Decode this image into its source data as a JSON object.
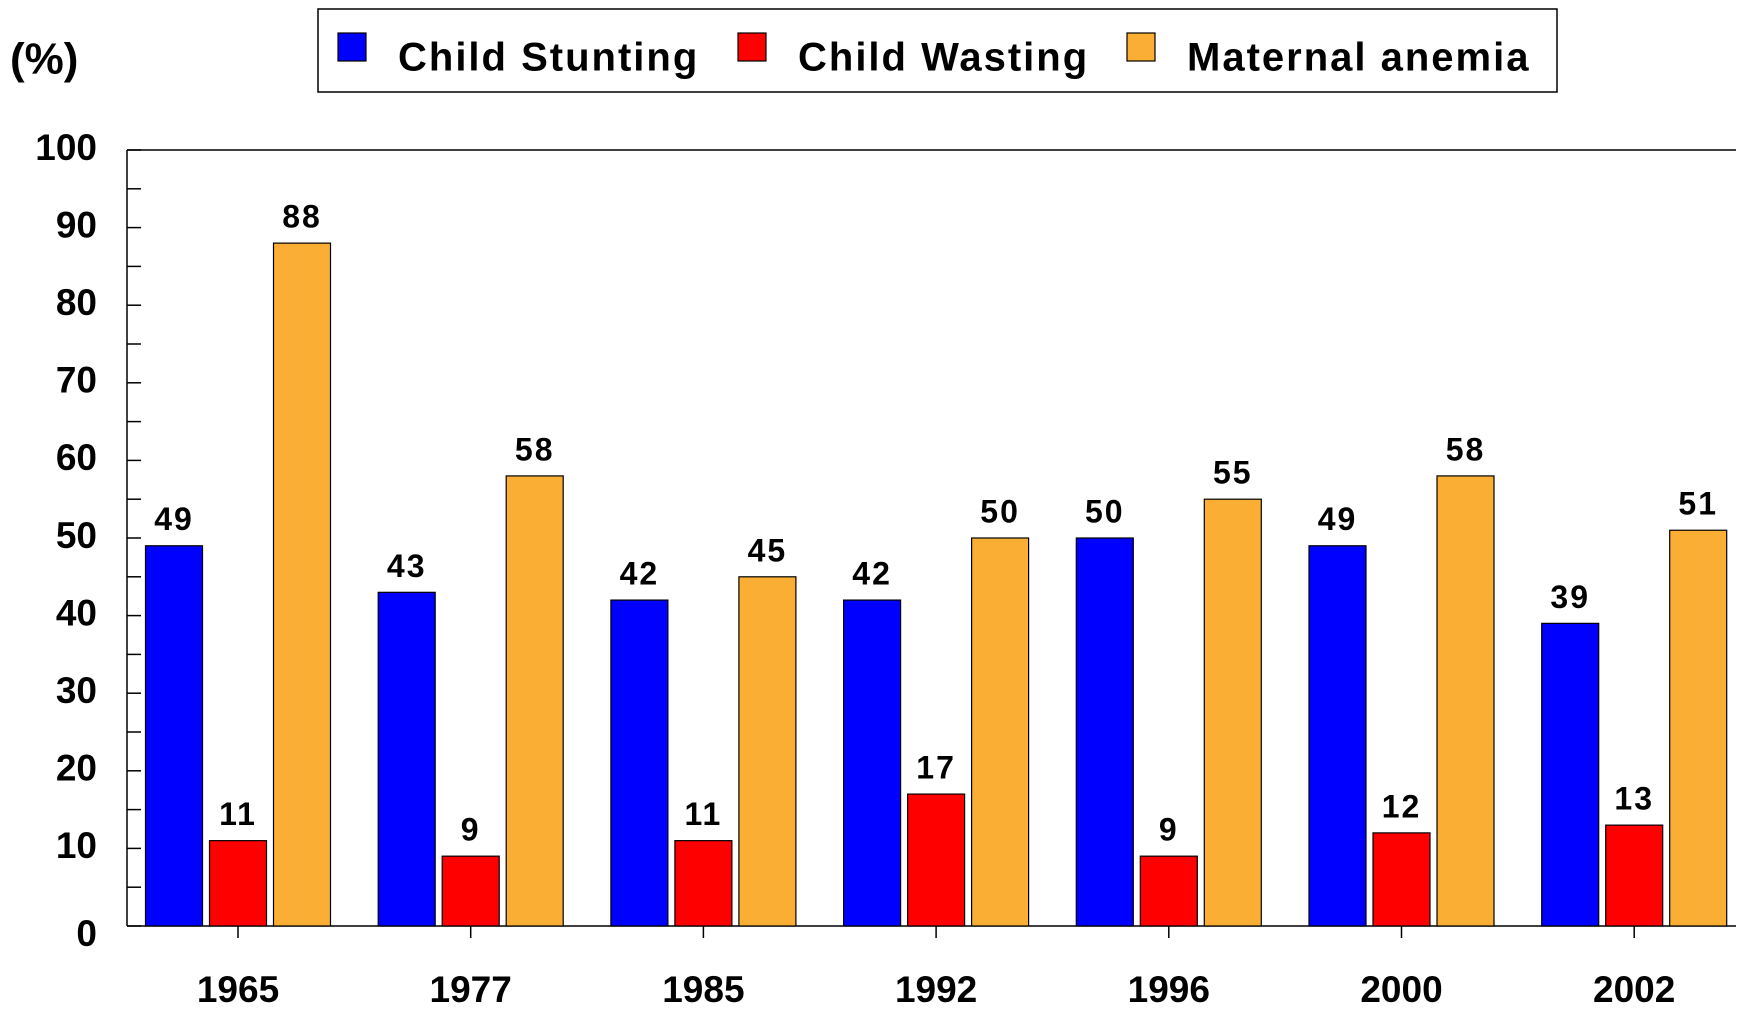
{
  "chart_data": {
    "type": "bar",
    "y_label": "(%)",
    "categories": [
      "1965",
      "1977",
      "1985",
      "1992",
      "1996",
      "2000",
      "2002"
    ],
    "series": [
      {
        "name": "Child Stunting",
        "color": "#0000ff",
        "values": [
          49,
          43,
          42,
          42,
          50,
          49,
          39
        ]
      },
      {
        "name": "Child Wasting",
        "color": "#ff0000",
        "values": [
          11,
          9,
          11,
          17,
          9,
          12,
          13
        ]
      },
      {
        "name": "Maternal anemia",
        "color": "#fbae34",
        "values": [
          88,
          58,
          45,
          50,
          55,
          58,
          51
        ]
      }
    ],
    "ylim": [
      0,
      100
    ],
    "yticks": [
      0,
      10,
      20,
      30,
      40,
      50,
      60,
      70,
      80,
      90,
      100
    ],
    "yticks_minor": [
      5,
      15,
      25,
      35,
      45,
      55,
      65,
      75,
      85,
      95
    ],
    "legend": "top",
    "grid": false
  }
}
